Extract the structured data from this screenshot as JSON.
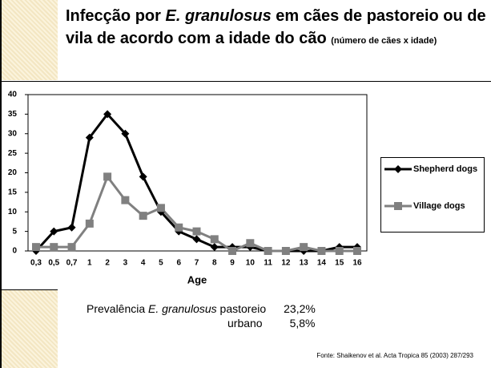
{
  "chart_data": {
    "type": "line",
    "title_prefix": "Infecção por",
    "title_italic": "E. granulosus",
    "title_rest": "em cães de pastoreio ou de vila de acordo com a idade do cão",
    "subtitle": "(número de cães x idade)",
    "x_label": "Age",
    "categories": [
      "0,3",
      "0,5",
      "0,7",
      "1",
      "2",
      "3",
      "4",
      "5",
      "6",
      "7",
      "8",
      "9",
      "10",
      "11",
      "12",
      "13",
      "14",
      "15",
      "16"
    ],
    "series": [
      {
        "name": "Shepherd dogs",
        "color": "#000000",
        "marker": "diamond",
        "values": [
          0,
          5,
          6,
          29,
          35,
          30,
          19,
          10,
          5,
          3,
          1,
          1,
          1,
          0,
          0,
          0,
          0,
          1,
          1
        ]
      },
      {
        "name": "Village dogs",
        "color": "#808080",
        "marker": "square",
        "values": [
          1,
          1,
          1,
          7,
          19,
          13,
          9,
          11,
          6,
          5,
          3,
          0,
          2,
          0,
          0,
          1,
          0,
          0,
          0
        ]
      }
    ],
    "ylim": [
      0,
      40
    ],
    "yticks": [
      0,
      5,
      10,
      15,
      20,
      25,
      30,
      35,
      40
    ],
    "legend": "right"
  },
  "prevalence": {
    "label": "Prevalência",
    "species": "E. granulosus",
    "rows": [
      [
        "pastoreio",
        "23,2%"
      ],
      [
        "urbano",
        "5,8%"
      ]
    ]
  },
  "source": "Fonte: Shaikenov et al. Acta Tropica 85 (2003) 287/293"
}
